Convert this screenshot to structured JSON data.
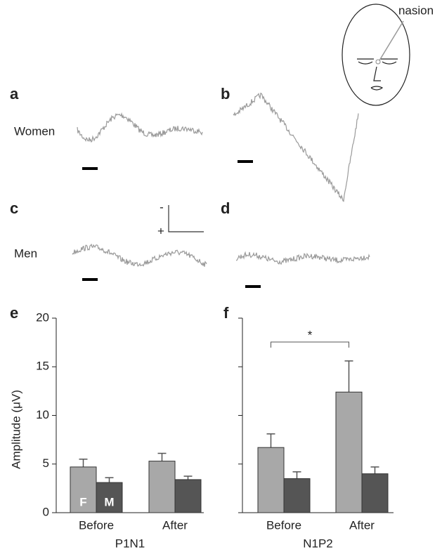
{
  "labels": {
    "a": "a",
    "b": "b",
    "c": "c",
    "d": "d",
    "women": "Women",
    "men": "Men",
    "nasion": "nasion",
    "minus": "-",
    "plus": "+"
  },
  "chart_data": [
    {
      "type": "bar",
      "panel_label": "e",
      "xlabel": "P1N1",
      "ylabel": "Amplitude (μV)",
      "categories": [
        "Before",
        "After"
      ],
      "series": [
        {
          "name": "F",
          "color": "#a8a8a8",
          "values": [
            4.7,
            5.3
          ],
          "errors": [
            0.8,
            0.8
          ]
        },
        {
          "name": "M",
          "color": "#555555",
          "values": [
            3.1,
            3.4
          ],
          "errors": [
            0.5,
            0.35
          ]
        }
      ],
      "ylim": [
        0,
        20
      ],
      "yticks": [
        0,
        5,
        10,
        15,
        20
      ],
      "tick_labels": true
    },
    {
      "type": "bar",
      "panel_label": "f",
      "xlabel": "N1P2",
      "categories": [
        "Before",
        "After"
      ],
      "series": [
        {
          "color": "#a8a8a8",
          "values": [
            6.7,
            12.4
          ],
          "errors": [
            1.4,
            3.2
          ]
        },
        {
          "color": "#555555",
          "values": [
            3.5,
            4.0
          ],
          "errors": [
            0.7,
            0.7
          ]
        }
      ],
      "ylim": [
        0,
        20
      ],
      "yticks": [
        0,
        5,
        10,
        15,
        20
      ],
      "tick_labels": false,
      "annotation": "*"
    }
  ]
}
